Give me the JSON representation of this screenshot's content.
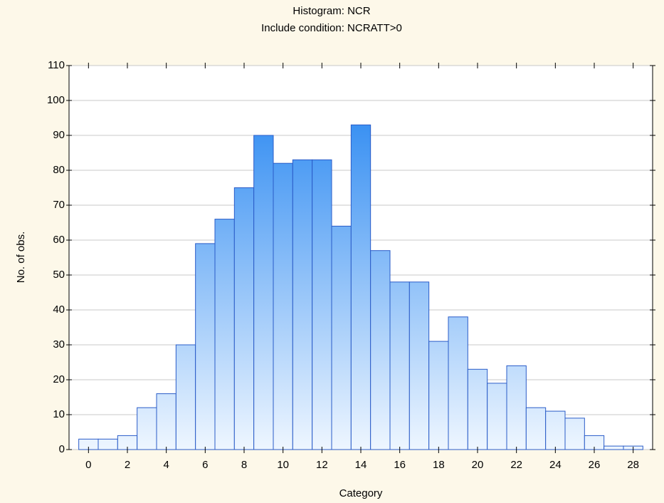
{
  "chart_data": {
    "type": "histogram",
    "title": "Histogram: NCR",
    "subtitle": "Include condition: NCRATT>0",
    "xlabel": "Category",
    "ylabel": "No. of obs.",
    "bins": [
      -0.5,
      0.5,
      1.5,
      2.5,
      3.5,
      4.5,
      5.5,
      6.5,
      7.5,
      8.5,
      9.5,
      10.5,
      11.5,
      12.5,
      13.5,
      14.5,
      15.5,
      16.5,
      17.5,
      18.5,
      19.5,
      20.5,
      21.5,
      22.5,
      23.5,
      24.5,
      25.5,
      26.5,
      27.5,
      28.5
    ],
    "values": [
      3,
      3,
      4,
      12,
      16,
      30,
      59,
      66,
      75,
      90,
      82,
      83,
      83,
      64,
      93,
      57,
      48,
      48,
      31,
      38,
      23,
      19,
      24,
      12,
      11,
      9,
      4,
      1,
      1
    ],
    "color": "#1a7ff0",
    "edgecolor": "#2a5cc8",
    "xlim": [
      -1,
      29
    ],
    "xticks": [
      0,
      2,
      4,
      6,
      8,
      10,
      12,
      14,
      16,
      18,
      20,
      22,
      24,
      26,
      28
    ],
    "ylim": [
      0,
      110
    ],
    "yticks": [
      0,
      10,
      20,
      30,
      40,
      50,
      60,
      70,
      80,
      90,
      100,
      110
    ],
    "grid": true
  }
}
